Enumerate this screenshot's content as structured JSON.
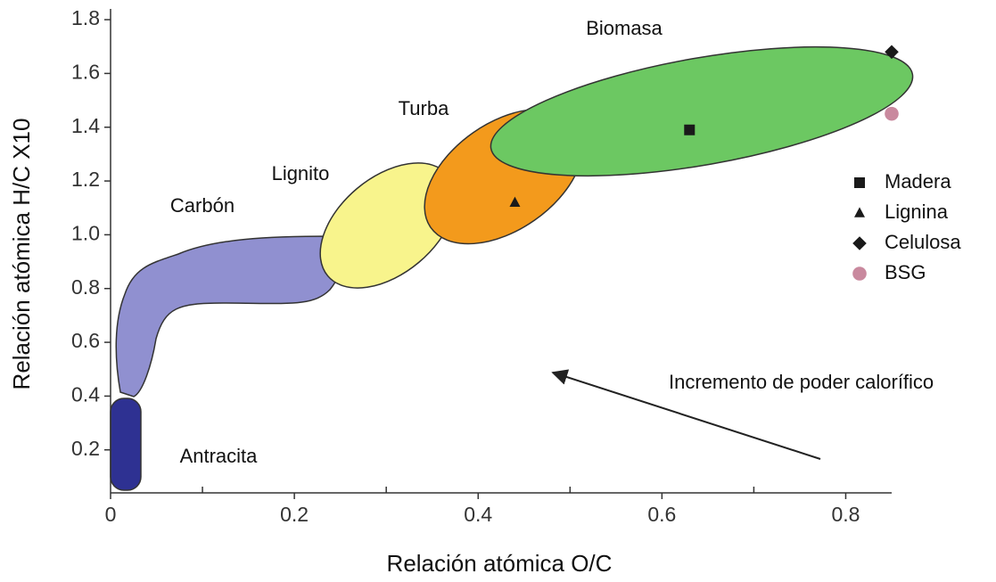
{
  "chart_data": {
    "type": "scatter",
    "x_label": "Relación atómica O/C",
    "y_label": "Relación atómica H/C  X10",
    "xlim": [
      0,
      0.85
    ],
    "ylim": [
      0.04,
      1.84
    ],
    "xticks": [
      0,
      0.2,
      0.4,
      0.6,
      0.8
    ],
    "xminor": [
      0.1,
      0.3,
      0.5,
      0.7
    ],
    "yticks": [
      0.2,
      0.4,
      0.6,
      0.8,
      {
        "value": 1,
        "label": "1.0"
      },
      1.2,
      1.4,
      1.6,
      1.8
    ],
    "regions": [
      "Biomasa",
      "Turba",
      "Lignito",
      "Carbón",
      "Antracita"
    ],
    "annotation": "Incremento de poder calorífico",
    "legend": "right",
    "series": [
      {
        "name": "Madera",
        "marker": "square",
        "color": "#1a1a1a",
        "x": [
          0.63
        ],
        "values": [
          1.39
        ]
      },
      {
        "name": "Lignina",
        "marker": "triangle",
        "color": "#1a1a1a",
        "x": [
          0.44
        ],
        "values": [
          1.12
        ]
      },
      {
        "name": "Celulosa",
        "marker": "diamond",
        "color": "#1a1a1a",
        "x": [
          0.85
        ],
        "values": [
          1.68
        ]
      },
      {
        "name": "BSG",
        "marker": "circle",
        "color": "#c9899e",
        "x": [
          0.85
        ],
        "values": [
          1.45
        ]
      }
    ]
  }
}
